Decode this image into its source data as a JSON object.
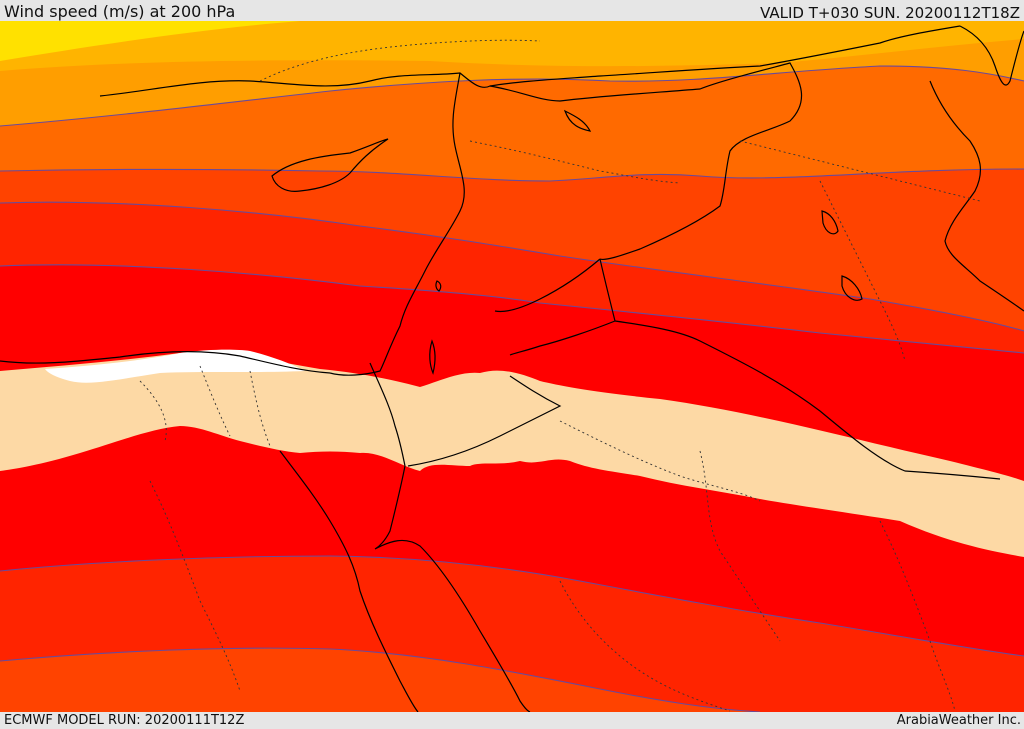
{
  "header": {
    "title": "Wind speed (m/s) at 200 hPa",
    "valid": "VALID T+030 SUN. 20200112T18Z"
  },
  "footer": {
    "model_run": "ECMWF MODEL RUN: 20200111T12Z",
    "brand": "ArabiaWeather Inc."
  },
  "colors": {
    "band_yellow": "#ffe100",
    "band_gold": "#ffb400",
    "band_amber": "#ff9e00",
    "band_orange": "#ff6a00",
    "band_red_orange": "#ff4300",
    "band_red": "#ff2400",
    "band_core": "#ff0000",
    "band_calm": "#fdd9a5",
    "band_white": "#ffffff",
    "contour": "#6a4a9a",
    "border": "#000000"
  }
}
